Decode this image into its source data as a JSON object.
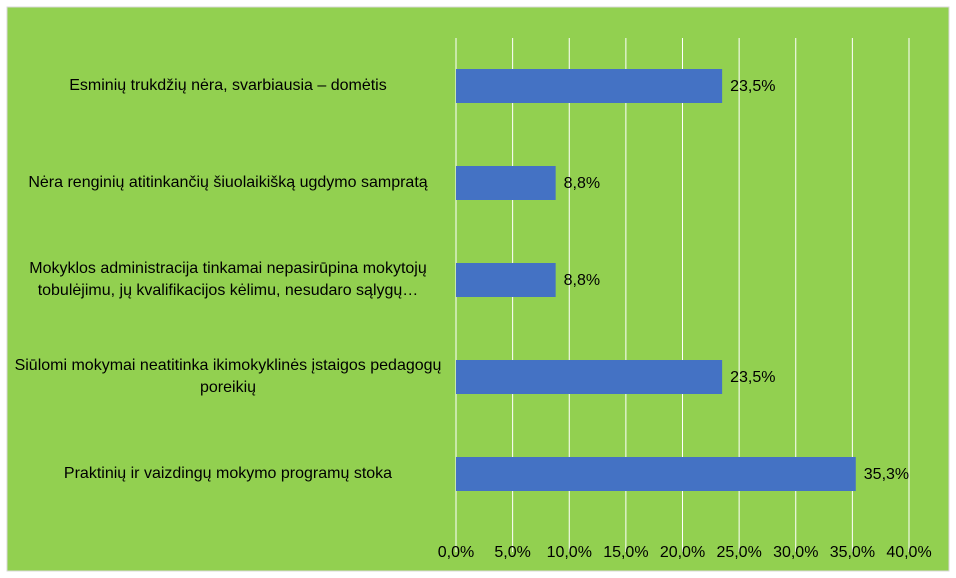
{
  "chart_data": {
    "type": "bar",
    "orientation": "horizontal",
    "categories": [
      "Esminių trukdžių nėra, svarbiausia – domėtis",
      "Nėra renginių atitinkančių šiuolaikišką ugdymo sampratą",
      "Mokyklos administracija tinkamai nepasirūpina mokytojų tobulėjimu, jų kvalifikacijos kėlimu, nesudaro sąlygų…",
      "Siūlomi mokymai neatitinka ikimokyklinės įstaigos pedagogų poreikių",
      "Praktinių ir vaizdingų mokymo programų stoka"
    ],
    "values": [
      23.5,
      8.8,
      8.8,
      23.5,
      35.3
    ],
    "value_labels": [
      "23,5%",
      "8,8%",
      "8,8%",
      "23,5%",
      "35,3%"
    ],
    "color": "#4472c4",
    "background": "#92d050",
    "xlim": [
      0,
      40
    ],
    "xticks": [
      {
        "value": 0,
        "label": "0,0%"
      },
      {
        "value": 5,
        "label": "5,0%"
      },
      {
        "value": 10,
        "label": "10,0%"
      },
      {
        "value": 15,
        "label": "15,0%"
      },
      {
        "value": 20,
        "label": "20,0%"
      },
      {
        "value": 25,
        "label": "25,0%"
      },
      {
        "value": 30,
        "label": "30,0%"
      },
      {
        "value": 35,
        "label": "35,0%"
      },
      {
        "value": 40,
        "label": "40,0%"
      }
    ],
    "grid": true
  }
}
